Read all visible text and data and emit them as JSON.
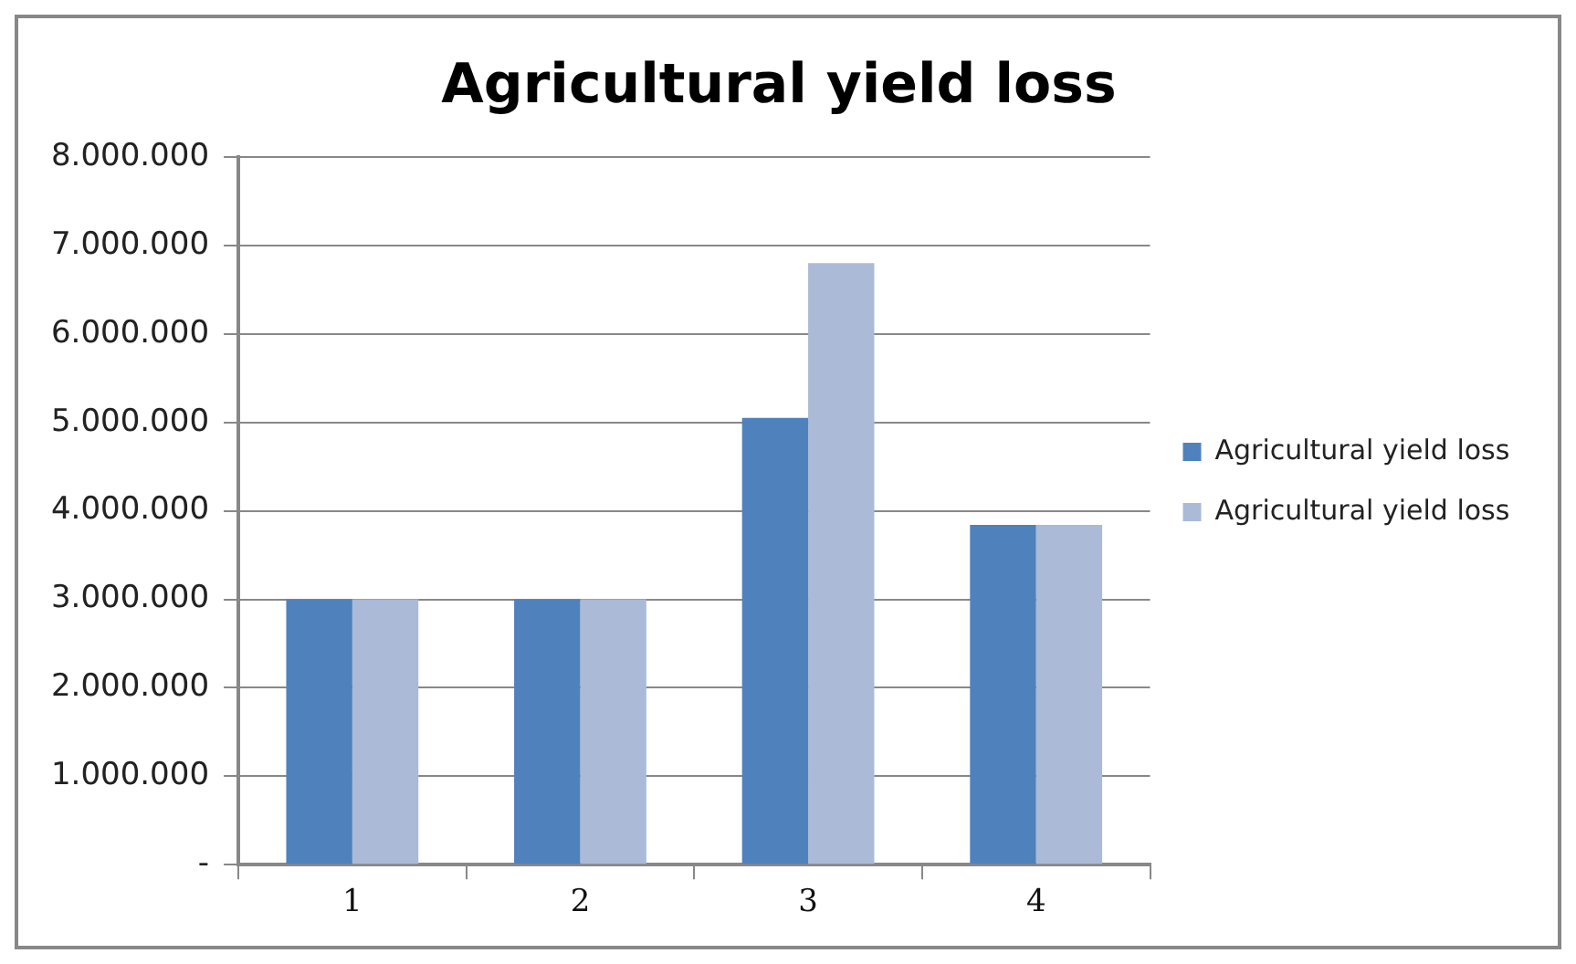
{
  "chart_data": {
    "type": "bar",
    "title": "Agricultural yield loss",
    "categories": [
      "1",
      "2",
      "3",
      "4"
    ],
    "series": [
      {
        "name": "Agricultural yield loss",
        "color": "#4f81bd",
        "values": [
          3000000,
          3000000,
          5050000,
          3840000
        ]
      },
      {
        "name": "Agricultural yield loss",
        "color": "#aabad7",
        "values": [
          3000000,
          3000000,
          6800000,
          3840000
        ]
      }
    ],
    "ylim": [
      0,
      8000000
    ],
    "yticks": [
      {
        "value": 0,
        "label": "-"
      },
      {
        "value": 1000000,
        "label": "1.000.000"
      },
      {
        "value": 2000000,
        "label": "2.000.000"
      },
      {
        "value": 3000000,
        "label": "3.000.000"
      },
      {
        "value": 4000000,
        "label": "4.000.000"
      },
      {
        "value": 5000000,
        "label": "5.000.000"
      },
      {
        "value": 6000000,
        "label": "6.000.000"
      },
      {
        "value": 7000000,
        "label": "7.000.000"
      },
      {
        "value": 8000000,
        "label": "8.000.000"
      }
    ],
    "grid": "y",
    "legend": "right"
  }
}
